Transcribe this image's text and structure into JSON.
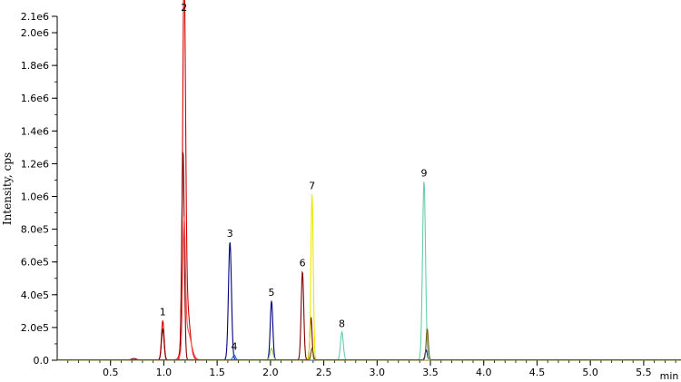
{
  "chart_data": {
    "type": "line",
    "title": "",
    "xlabel": "min",
    "ylabel": "Intensity, cps",
    "xlim": [
      0.0,
      5.85
    ],
    "ylim": [
      0.0,
      2100000.0
    ],
    "grid": false,
    "legend": "none",
    "x_ticks": [
      {
        "value": 0.5,
        "label": "0.5"
      },
      {
        "value": 1.0,
        "label": "1.0"
      },
      {
        "value": 1.5,
        "label": "1.5"
      },
      {
        "value": 2.0,
        "label": "2.0"
      },
      {
        "value": 2.5,
        "label": "2.5"
      },
      {
        "value": 3.0,
        "label": "3.0"
      },
      {
        "value": 3.5,
        "label": "3.5"
      },
      {
        "value": 4.0,
        "label": "4.0"
      },
      {
        "value": 4.5,
        "label": "4.5"
      },
      {
        "value": 5.0,
        "label": "5.0"
      },
      {
        "value": 5.5,
        "label": "5.5"
      }
    ],
    "y_ticks": [
      {
        "value": 0,
        "label": "0.0"
      },
      {
        "value": 200000,
        "label": "2.0e5"
      },
      {
        "value": 400000,
        "label": "4.0e5"
      },
      {
        "value": 600000,
        "label": "6.0e5"
      },
      {
        "value": 800000,
        "label": "8.0e5"
      },
      {
        "value": 1000000,
        "label": "1.0e6"
      },
      {
        "value": 1200000,
        "label": "1.2e6"
      },
      {
        "value": 1400000,
        "label": "1.4e6"
      },
      {
        "value": 1600000,
        "label": "1.6e6"
      },
      {
        "value": 1800000,
        "label": "1.8e6"
      },
      {
        "value": 2000000,
        "label": "2.0e6"
      },
      {
        "value": 2100000,
        "label": "2.1e6"
      }
    ],
    "series": [
      {
        "color": "#d40000",
        "peaks": [
          [
            0.99,
            240000,
            0.012
          ],
          [
            1.19,
            2100000,
            0.013
          ],
          [
            1.21,
            370000,
            0.03
          ]
        ]
      },
      {
        "color": "#800000",
        "peaks": [
          [
            0.99,
            190000,
            0.012
          ],
          [
            1.18,
            1280000,
            0.012
          ],
          [
            2.3,
            540000,
            0.012
          ],
          [
            2.38,
            260000,
            0.01
          ],
          [
            0.72,
            8000,
            0.02
          ]
        ]
      },
      {
        "color": "#ff5050",
        "peaks": [
          [
            1.19,
            750000,
            0.012
          ],
          [
            1.22,
            180000,
            0.035
          ]
        ]
      },
      {
        "color": "#000080",
        "peaks": [
          [
            1.62,
            720000,
            0.014
          ],
          [
            2.01,
            360000,
            0.012
          ],
          [
            3.46,
            60000,
            0.01
          ]
        ]
      },
      {
        "color": "#1e6fd9",
        "peaks": [
          [
            1.66,
            30000,
            0.012
          ]
        ]
      },
      {
        "color": "#8fbc5f",
        "peaks": [
          [
            2.01,
            70000,
            0.014
          ],
          [
            2.39,
            70000,
            0.012
          ]
        ]
      },
      {
        "color": "#e8e800",
        "peaks": [
          [
            2.39,
            1010000,
            0.011
          ]
        ]
      },
      {
        "color": "#66cdaa",
        "peaks": [
          [
            2.67,
            170000,
            0.013
          ],
          [
            3.44,
            1090000,
            0.014
          ]
        ]
      },
      {
        "color": "#6b5a10",
        "peaks": [
          [
            3.47,
            190000,
            0.01
          ],
          [
            2.39,
            70000,
            0.01
          ]
        ]
      }
    ],
    "annotations": [
      {
        "text": "1",
        "x": 0.99,
        "y": 240000
      },
      {
        "text": "2",
        "x": 1.19,
        "y": 2100000
      },
      {
        "text": "3",
        "x": 1.62,
        "y": 720000
      },
      {
        "text": "4",
        "x": 1.66,
        "y": 30000
      },
      {
        "text": "5",
        "x": 2.01,
        "y": 360000
      },
      {
        "text": "6",
        "x": 2.3,
        "y": 540000
      },
      {
        "text": "7",
        "x": 2.39,
        "y": 1010000
      },
      {
        "text": "8",
        "x": 2.67,
        "y": 170000
      },
      {
        "text": "9",
        "x": 3.44,
        "y": 1090000
      }
    ]
  }
}
